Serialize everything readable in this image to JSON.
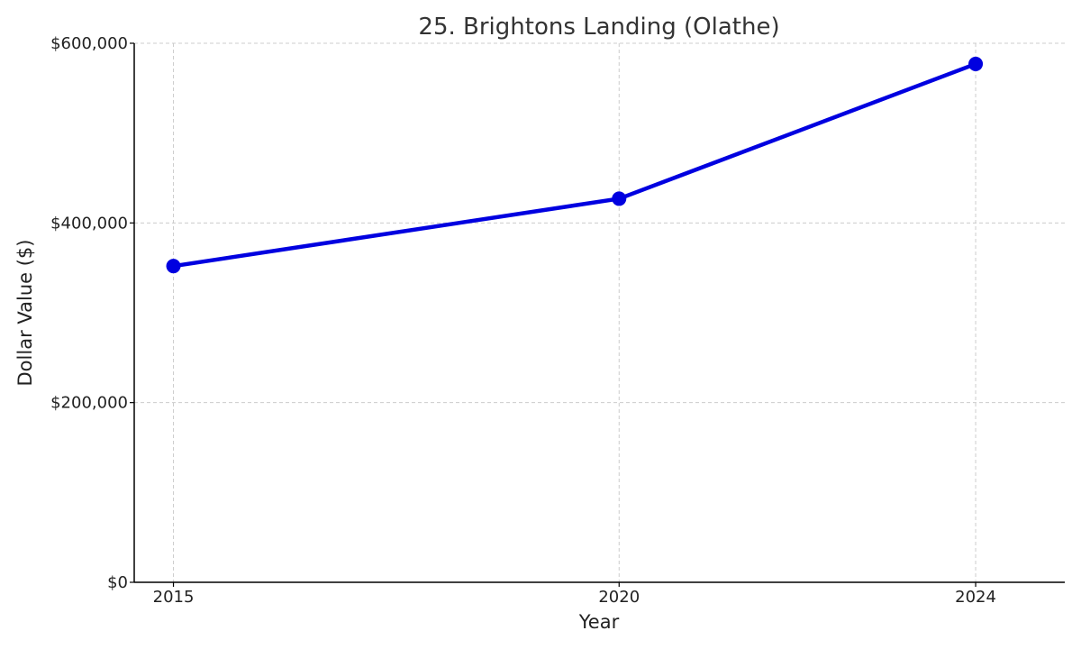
{
  "chart_data": {
    "type": "line",
    "title": "25. Brightons Landing (Olathe)",
    "xlabel": "Year",
    "ylabel": "Dollar Value ($)",
    "x": [
      2015,
      2020,
      2024
    ],
    "x_tick_labels": [
      "2015",
      "2020",
      "2024"
    ],
    "xlim": [
      2014.56,
      2025.0
    ],
    "ylim": [
      0,
      600000
    ],
    "y_ticks": [
      0,
      200000,
      400000,
      600000
    ],
    "y_tick_labels": [
      "$0",
      "$200,000",
      "$400,000",
      "$600,000"
    ],
    "grid": true,
    "series": [
      {
        "values": [
          352000,
          427000,
          577000
        ],
        "color": "#0000e0"
      }
    ]
  }
}
